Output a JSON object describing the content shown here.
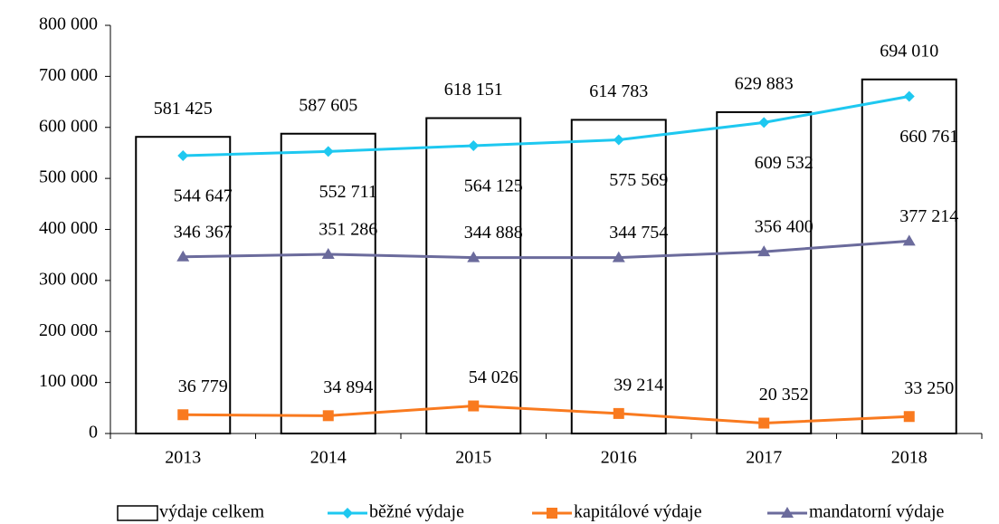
{
  "chart_data": {
    "type": "combo",
    "categories": [
      "2013",
      "2014",
      "2015",
      "2016",
      "2017",
      "2018"
    ],
    "series": [
      {
        "name": "výdaje celkem",
        "type": "bar",
        "color": "#ffffff",
        "values": [
          581425,
          587605,
          618151,
          614783,
          629883,
          694010
        ],
        "value_labels": [
          "581 425",
          "587 605",
          "618 151",
          "614 783",
          "629 883",
          "694 010"
        ]
      },
      {
        "name": "běžné výdaje",
        "type": "line",
        "marker": "diamond",
        "color": "#1ec8f0",
        "values": [
          544647,
          552711,
          564125,
          575569,
          609532,
          660761
        ],
        "value_labels": [
          "544 647",
          "552 711",
          "564 125",
          "575 569",
          "609 532",
          "660 761"
        ]
      },
      {
        "name": "kapitálové výdaje",
        "type": "line",
        "marker": "square",
        "color": "#f97a1f",
        "values": [
          36779,
          34894,
          54026,
          39214,
          20352,
          33250
        ],
        "value_labels": [
          "36 779",
          "34 894",
          "54 026",
          "39 214",
          "20 352",
          "33 250"
        ]
      },
      {
        "name": "mandatorní výdaje",
        "type": "line",
        "marker": "triangle",
        "color": "#6b6b9c",
        "values": [
          346367,
          351286,
          344888,
          344754,
          356400,
          377214
        ],
        "value_labels": [
          "346 367",
          "351 286",
          "344 888",
          "344 754",
          "356 400",
          "377 214"
        ]
      }
    ],
    "ylim": [
      0,
      800000
    ],
    "yticks": [
      {
        "value": 0,
        "label": "0"
      },
      {
        "value": 100000,
        "label": "100 000"
      },
      {
        "value": 200000,
        "label": "200 000"
      },
      {
        "value": 300000,
        "label": "300 000"
      },
      {
        "value": 400000,
        "label": "400 000"
      },
      {
        "value": 500000,
        "label": "500 000"
      },
      {
        "value": 600000,
        "label": "600 000"
      },
      {
        "value": 700000,
        "label": "700 000"
      },
      {
        "value": 800000,
        "label": "800 000"
      }
    ],
    "grid": false,
    "legend": "bottom"
  }
}
